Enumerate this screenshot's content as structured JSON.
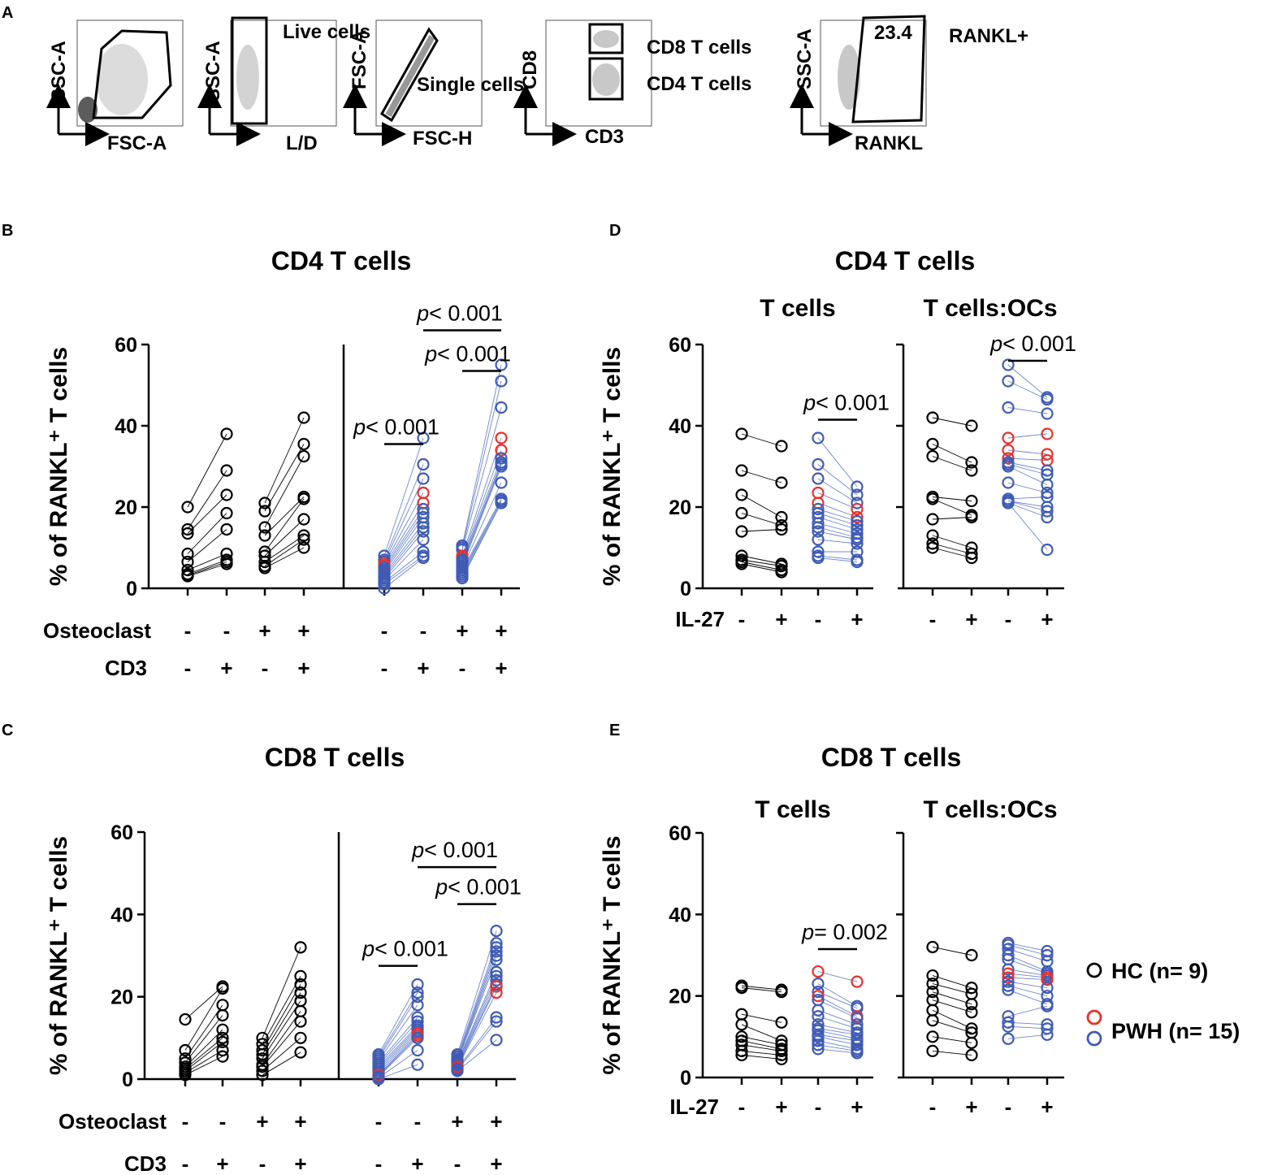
{
  "colors": {
    "hc": "#000000",
    "pwh_red": "#e8312e",
    "pwh_blue": "#3f5bb5",
    "line_blue": "#6d86cf"
  },
  "panel_a": {
    "letter": "A",
    "gates": [
      {
        "name": "fsc-ssc",
        "ylabel": "SSC-A",
        "xlabel": "FSC-A",
        "gate_label": ""
      },
      {
        "name": "live",
        "ylabel": "SSC-A",
        "xlabel": "L/D",
        "gate_label": "Live cells"
      },
      {
        "name": "singlet",
        "ylabel": "FSC-A",
        "xlabel": "FSC-H",
        "gate_label": "Single cells"
      },
      {
        "name": "cd3-cd8",
        "ylabel": "CD8",
        "xlabel": "CD3",
        "gate_label_top": "CD8 T cells",
        "gate_label_bottom": "CD4 T cells"
      },
      {
        "name": "rankl",
        "ylabel": "SSC-A",
        "xlabel": "RANKL",
        "gate_value": "23.4",
        "gate_label": "RANKL+"
      }
    ]
  },
  "chart_data": [
    {
      "id": "B",
      "type": "scatter",
      "title": "CD4 T cells",
      "ylabel": "% of RANKL⁺ T cells",
      "ylim": [
        0,
        60
      ],
      "yticks": [
        0,
        20,
        40,
        60
      ],
      "row_labels": [
        "Osteoclast",
        "CD3"
      ],
      "conditions": [
        {
          "osteoclast": "-",
          "cd3": "-"
        },
        {
          "osteoclast": "-",
          "cd3": "+"
        },
        {
          "osteoclast": "+",
          "cd3": "-"
        },
        {
          "osteoclast": "+",
          "cd3": "+"
        }
      ],
      "groups": [
        {
          "name": "HC",
          "pairs": [
            {
              "from": 0,
              "to": 1,
              "a": [
                20,
                14.5,
                13.5,
                8.5,
                6.5,
                4.5,
                3.5,
                3.2,
                3.0
              ],
              "b": [
                38,
                29,
                23,
                18.5,
                14.5,
                8.5,
                7,
                6.5,
                6.0
              ]
            },
            {
              "from": 2,
              "to": 3,
              "a": [
                21,
                19,
                15,
                13,
                9,
                8,
                6.5,
                5.5,
                5.0
              ],
              "b": [
                42,
                35.5,
                32.5,
                22.5,
                22,
                17,
                13,
                12,
                10
              ]
            }
          ]
        },
        {
          "name": "PWH",
          "red_index": [
            3,
            4
          ],
          "pairs": [
            {
              "from": 0,
              "to": 1,
              "a": [
                8,
                7,
                6.5,
                6,
                5.5,
                5,
                4.5,
                4,
                3.5,
                3,
                2.5,
                2,
                1.5,
                1,
                0
              ],
              "b": [
                37,
                30.5,
                27,
                23.5,
                21,
                19.5,
                18.5,
                17.5,
                16,
                15,
                14,
                12,
                9,
                8,
                7.5
              ]
            },
            {
              "from": 2,
              "to": 3,
              "a": [
                10.5,
                10,
                9.5,
                8,
                7.5,
                7,
                6.5,
                6,
                5.5,
                5,
                4.5,
                4,
                3.5,
                3,
                2.5
              ],
              "b": [
                55,
                51,
                44.5,
                37,
                34,
                32,
                31,
                30.5,
                30,
                26,
                22,
                21.5,
                21.5,
                21,
                21
              ]
            }
          ]
        }
      ],
      "annotations": [
        {
          "text": "p< 0.001",
          "from": 0,
          "to": 1,
          "y": 35.5
        },
        {
          "text": "p< 0.001",
          "from": 2,
          "to": 3,
          "y": 53.5
        },
        {
          "text": "p< 0.001",
          "from": 1,
          "to": 3,
          "y": 63.5
        }
      ]
    },
    {
      "id": "C",
      "type": "scatter",
      "title": "CD8 T cells",
      "ylabel": "% of RANKL⁺ T cells",
      "ylim": [
        0,
        60
      ],
      "yticks": [
        0,
        20,
        40,
        60
      ],
      "row_labels": [
        "Osteoclast",
        "CD3"
      ],
      "conditions": [
        {
          "osteoclast": "-",
          "cd3": "-"
        },
        {
          "osteoclast": "-",
          "cd3": "+"
        },
        {
          "osteoclast": "+",
          "cd3": "-"
        },
        {
          "osteoclast": "+",
          "cd3": "+"
        }
      ],
      "groups": [
        {
          "name": "HC",
          "pairs": [
            {
              "from": 0,
              "to": 1,
              "a": [
                14.5,
                7,
                5,
                4,
                3,
                2.5,
                2,
                1.5,
                1
              ],
              "b": [
                22.5,
                22,
                18,
                15.5,
                12,
                10,
                9,
                7,
                5.5
              ]
            },
            {
              "from": 2,
              "to": 3,
              "a": [
                10,
                8.5,
                7,
                6,
                5,
                3.5,
                3,
                2,
                1
              ],
              "b": [
                32,
                25,
                23,
                21,
                19,
                16.5,
                14,
                10,
                6.5
              ]
            }
          ]
        },
        {
          "name": "PWH",
          "red_index": [
            10,
            11
          ],
          "pairs": [
            {
              "from": 0,
              "to": 1,
              "a": [
                6,
                5.5,
                5,
                4.5,
                4,
                3.5,
                3,
                2.5,
                2,
                1.5,
                1,
                0.8,
                0.6,
                0.3,
                0
              ],
              "b": [
                23,
                21,
                20,
                18,
                15,
                14,
                13,
                12.5,
                12,
                11.5,
                11,
                10.5,
                10,
                7,
                3.5
              ]
            },
            {
              "from": 2,
              "to": 3,
              "a": [
                6,
                5.5,
                5,
                4.8,
                4.5,
                4.2,
                4,
                3.8,
                3.5,
                3.2,
                3,
                2.8,
                2.5,
                2.2,
                2
              ],
              "b": [
                36,
                33,
                32,
                31,
                30,
                29,
                26,
                25,
                24,
                23,
                22.5,
                21,
                15,
                14,
                9.5
              ]
            }
          ]
        }
      ],
      "annotations": [
        {
          "text": "p< 0.001",
          "from": 0,
          "to": 1,
          "y": 27.5
        },
        {
          "text": "p< 0.001",
          "from": 2,
          "to": 3,
          "y": 42.5
        },
        {
          "text": "p< 0.001",
          "from": 1,
          "to": 3,
          "y": 51.5
        }
      ]
    },
    {
      "id": "D",
      "type": "scatter",
      "title": "CD4 T cells",
      "ylabel": "% of RANKL⁺ T cells",
      "ylim": [
        0,
        60
      ],
      "yticks": [
        0,
        20,
        40,
        60
      ],
      "row_labels": [
        "IL-27"
      ],
      "subpanels": [
        {
          "subtitle": "T cells",
          "conditions": [
            "-",
            "+",
            "-",
            "+"
          ],
          "hc": {
            "a": [
              38,
              29,
              23,
              18.5,
              14,
              8,
              7,
              6.5,
              6
            ],
            "b": [
              35,
              26,
              17.5,
              15.5,
              14.5,
              6,
              5.5,
              4.5,
              4
            ]
          },
          "pwh": {
            "red_index": [
              3,
              4
            ],
            "a": [
              37,
              30.5,
              27,
              23.5,
              21,
              19.5,
              18.5,
              17.5,
              16,
              15,
              14,
              12,
              9,
              8,
              7.5
            ],
            "b": [
              25,
              23,
              21,
              19.5,
              17.5,
              16.5,
              15.5,
              14.5,
              13.5,
              12.5,
              12,
              11,
              9,
              7,
              6.5
            ]
          },
          "annotation": {
            "text": "p< 0.001",
            "y": 41.5
          }
        },
        {
          "subtitle": "T cells:OCs",
          "conditions": [
            "-",
            "+",
            "-",
            "+"
          ],
          "hc": {
            "a": [
              42,
              35.5,
              32.5,
              22.5,
              22,
              17,
              13,
              11,
              10
            ],
            "b": [
              40,
              31,
              29,
              21.5,
              18,
              17.5,
              10,
              8.5,
              7.5
            ]
          },
          "pwh": {
            "red_index": [
              3,
              4,
              5
            ],
            "a": [
              55,
              51,
              44.5,
              37,
              34,
              32,
              31,
              30.5,
              30,
              26,
              22,
              21.5,
              21.5,
              21,
              21
            ],
            "b": [
              47,
              46.5,
              43,
              38,
              33,
              31.5,
              29,
              28,
              25.5,
              23.5,
              22.5,
              20,
              19,
              17.5,
              9.5
            ]
          },
          "annotation": {
            "text": "p< 0.001",
            "y": 56
          }
        }
      ]
    },
    {
      "id": "E",
      "type": "scatter",
      "title": "CD8 T cells",
      "ylabel": "% of RANKL⁺ T cells",
      "ylim": [
        0,
        60
      ],
      "yticks": [
        0,
        20,
        40,
        60
      ],
      "row_labels": [
        "IL-27"
      ],
      "subpanels": [
        {
          "subtitle": "T cells",
          "conditions": [
            "-",
            "+",
            "-",
            "+"
          ],
          "hc": {
            "a": [
              22.5,
              22,
              15.5,
              13,
              10,
              9,
              8,
              6.5,
              5.5
            ],
            "b": [
              21.5,
              21,
              13.5,
              9,
              8,
              7,
              6.5,
              5.5,
              4.5
            ]
          },
          "pwh": {
            "red_index": [
              0,
              3
            ],
            "a": [
              26,
              23,
              21,
              20,
              19,
              16.5,
              15,
              13,
              12,
              11.5,
              10.5,
              10,
              9,
              8,
              7
            ],
            "b": [
              23.5,
              17.5,
              17,
              15,
              14.5,
              13,
              12,
              11,
              10.5,
              9.5,
              9,
              8,
              7,
              6.5,
              6
            ]
          },
          "annotation": {
            "text": "p= 0.002",
            "y": 31.5
          }
        },
        {
          "subtitle": "T cells:OCs",
          "conditions": [
            "-",
            "+",
            "-",
            "+"
          ],
          "hc": {
            "a": [
              32,
              25,
              23,
              21,
              19,
              16.5,
              14,
              10,
              6.5
            ],
            "b": [
              30,
              22,
              20.5,
              18,
              16,
              12,
              11,
              8.5,
              5.5
            ]
          },
          "pwh": {
            "red_index": [
              6,
              7
            ],
            "a": [
              33,
              32.5,
              31.5,
              30,
              29,
              26.5,
              25.5,
              24.5,
              23.5,
              22.5,
              21.5,
              15,
              13.5,
              12.5,
              9.5
            ],
            "b": [
              31,
              30,
              28.5,
              26,
              25.5,
              25,
              24.5,
              24,
              22,
              20,
              18,
              17.5,
              13,
              12,
              10.5
            ]
          },
          "annotation": null
        }
      ]
    }
  ],
  "legend": {
    "hc_label": "HC (n= 9)",
    "pwh_label": "PWH (n= 15)"
  }
}
